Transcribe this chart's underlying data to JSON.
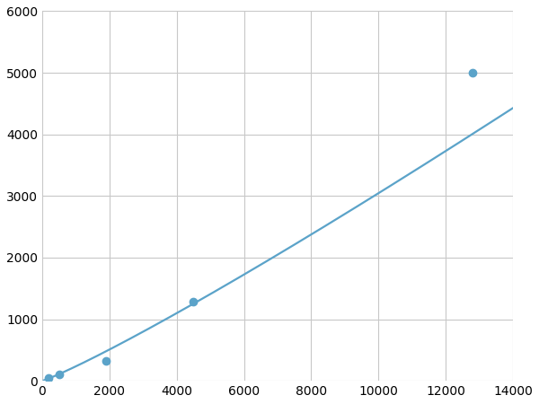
{
  "x_data": [
    200,
    500,
    1900,
    4500,
    12800
  ],
  "y_data": [
    50,
    100,
    320,
    1280,
    5000
  ],
  "line_color": "#5ba3c9",
  "marker_color": "#5ba3c9",
  "marker_size": 6,
  "marker_style": "o",
  "line_width": 1.6,
  "xlim": [
    0,
    14000
  ],
  "ylim": [
    0,
    6000
  ],
  "xticks": [
    0,
    2000,
    4000,
    6000,
    8000,
    10000,
    12000,
    14000
  ],
  "yticks": [
    0,
    1000,
    2000,
    3000,
    4000,
    5000,
    6000
  ],
  "grid_color": "#c8c8c8",
  "grid_linestyle": "-",
  "grid_linewidth": 0.8,
  "background_color": "#ffffff",
  "tick_fontsize": 10,
  "figure_width": 6.0,
  "figure_height": 4.5,
  "dpi": 100
}
